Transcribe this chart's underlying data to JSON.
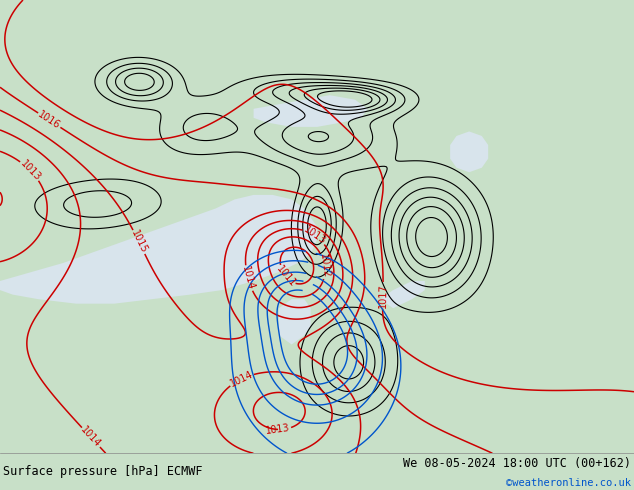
{
  "title_left": "Surface pressure [hPa] ECMWF",
  "title_right": "We 08-05-2024 18:00 UTC (00+162)",
  "copyright": "©weatheronline.co.uk",
  "bg_map_color": "#a8d4a0",
  "sea_color": "#d8e4ec",
  "footer_bg": "#c8e0c8",
  "contour_red": "#cc0000",
  "contour_black": "#000000",
  "contour_blue": "#0055cc",
  "footer_fontsize": 8.5,
  "label_fontsize": 7
}
